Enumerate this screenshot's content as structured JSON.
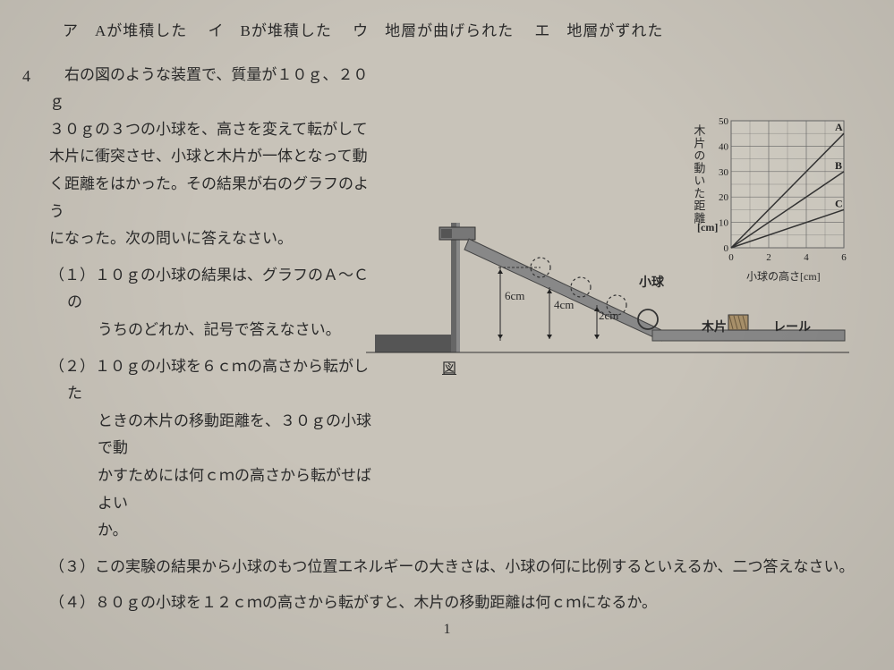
{
  "top_choices": {
    "a": "ア　Aが堆積した",
    "i": "イ　Bが堆積した",
    "u": "ウ　地層が曲げられた",
    "e": "エ　地層がずれた"
  },
  "q4": {
    "num": "4",
    "intro_l1": "　右の図のような装置で、質量が１０ｇ、２０ｇ",
    "intro_l2": "３０ｇの３つの小球を、高さを変えて転がして",
    "intro_l3": "木片に衝突させ、小球と木片が一体となって動",
    "intro_l4": "く距離をはかった。その結果が右のグラフのよう",
    "intro_l5": "になった。次の問いに答えなさい。",
    "sub1_l1": "（１）１０ｇの小球の結果は、グラフのＡ〜Ｃの",
    "sub1_l2": "うちのどれか、記号で答えなさい。",
    "sub2_l1": "（２）１０ｇの小球を６ｃｍの高さから転がした",
    "sub2_l2": "ときの木片の移動距離を、３０ｇの小球で動",
    "sub2_l3": "かすためには何ｃｍの高さから転がせばよい",
    "sub2_l4": "か。",
    "sub3": "（３）この実験の結果から小球のもつ位置エネルギーの大きさは、小球の何に比例するといえるか、二つ答えなさい。",
    "sub4": "（４）８０ｇの小球を１２ｃｍの高さから転がすと、木片の移動距離は何ｃｍになるか。"
  },
  "chart": {
    "ylabel": "木片の動いた距離",
    "yunit": "[cm]",
    "xlabel": "小球の高さ[cm]",
    "ylim": [
      0,
      50
    ],
    "yticks": [
      0,
      10,
      20,
      30,
      40,
      50
    ],
    "xlim": [
      0,
      6
    ],
    "xticks": [
      0,
      2,
      4,
      6
    ],
    "series": {
      "A": {
        "x": [
          0,
          6
        ],
        "y": [
          0,
          45
        ],
        "color": "#333333",
        "label": "A"
      },
      "B": {
        "x": [
          0,
          6
        ],
        "y": [
          0,
          30
        ],
        "color": "#333333",
        "label": "B"
      },
      "C": {
        "x": [
          0,
          6
        ],
        "y": [
          0,
          15
        ],
        "color": "#333333",
        "label": "C"
      }
    },
    "grid_color": "#666666",
    "background": "#d0ccc2",
    "line_width": 1.5,
    "font_size": 11
  },
  "apparatus": {
    "fig_label": "図",
    "ball_label": "小球",
    "block_label": "木片",
    "rail_label": "レール",
    "heights": [
      "6cm",
      "4cm",
      "2cm"
    ],
    "rail_color": "#888888",
    "base_color": "#555555",
    "stand_color": "#666666"
  },
  "page_num": "1"
}
